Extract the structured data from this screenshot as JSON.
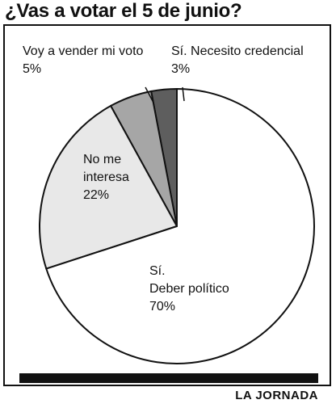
{
  "header": {
    "title": "¿Vas a votar el 5 de junio?"
  },
  "footer": {
    "source": "LA JORNADA"
  },
  "chart_data": {
    "type": "pie",
    "title": "¿Vas a votar el 5 de junio?",
    "slices": [
      {
        "label": "Sí. Deber político",
        "value": 70,
        "value_label": "70%",
        "color": "#ffffff"
      },
      {
        "label": "No me interesa",
        "value": 22,
        "value_label": "22%",
        "color": "#e8e8e8"
      },
      {
        "label": "Voy a vender mi voto",
        "value": 5,
        "value_label": "5%",
        "color": "#a6a6a6"
      },
      {
        "label": "Sí. Necesito credencial",
        "value": 3,
        "value_label": "3%",
        "color": "#5e5e5e"
      }
    ],
    "start": "top, clockwise from 12 o'clock in reverse order",
    "legend": "none (labels on chart)"
  }
}
